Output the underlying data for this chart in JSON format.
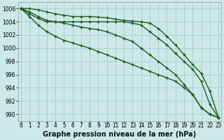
{
  "xlabel": "Graphe pression niveau de la mer (hPa)",
  "ylabel": "",
  "background_color": "#cce8e8",
  "plot_bg_color": "#cce8e8",
  "grid_color": "#aacccc",
  "line_color": "#1e5c1e",
  "ylim": [
    989,
    1007
  ],
  "xlim": [
    -0.3,
    23.3
  ],
  "yticks": [
    990,
    992,
    994,
    996,
    998,
    1000,
    1002,
    1004,
    1006
  ],
  "xticks": [
    0,
    1,
    2,
    3,
    4,
    5,
    6,
    7,
    8,
    9,
    10,
    11,
    12,
    13,
    14,
    15,
    16,
    17,
    18,
    19,
    20,
    21,
    22,
    23
  ],
  "series": [
    [
      1006,
      1006,
      1005.8,
      1005.5,
      1005.2,
      1005.0,
      1004.8,
      1004.8,
      1004.8,
      1004.7,
      1004.6,
      1004.4,
      1004.2,
      1004.1,
      1004.0,
      1003.8,
      1003.0,
      1001.8,
      1000.5,
      999.0,
      997.5,
      996.2,
      993.5,
      989.5
    ],
    [
      1006,
      1005.5,
      1004.8,
      1004.2,
      1004.0,
      1004.0,
      1004.0,
      1004.0,
      1004.0,
      1004.0,
      1004.0,
      1004.0,
      1004.0,
      1003.8,
      1003.5,
      1002.5,
      1001.5,
      1000.5,
      999.2,
      998.0,
      996.8,
      995.0,
      991.5,
      989.5
    ],
    [
      1006,
      1005.2,
      1004.5,
      1004.0,
      1004.0,
      1003.8,
      1003.5,
      1003.2,
      1003.0,
      1002.8,
      1002.5,
      1002.0,
      1001.5,
      1001.0,
      1000.0,
      999.0,
      998.0,
      997.0,
      996.0,
      994.5,
      993.0,
      991.0,
      990.0,
      989.5
    ],
    [
      1006,
      1004.8,
      1003.5,
      1002.5,
      1001.8,
      1001.2,
      1000.8,
      1000.4,
      1000.0,
      999.5,
      999.0,
      998.5,
      998.0,
      997.5,
      997.0,
      996.5,
      996.0,
      995.5,
      995.0,
      994.0,
      993.0,
      991.0,
      990.0,
      989.5
    ]
  ],
  "xlabel_fontsize": 7,
  "tick_fontsize": 5.5,
  "linewidth": 1.0,
  "marker": "+",
  "markersize": 3.5,
  "markeredgewidth": 1.0
}
